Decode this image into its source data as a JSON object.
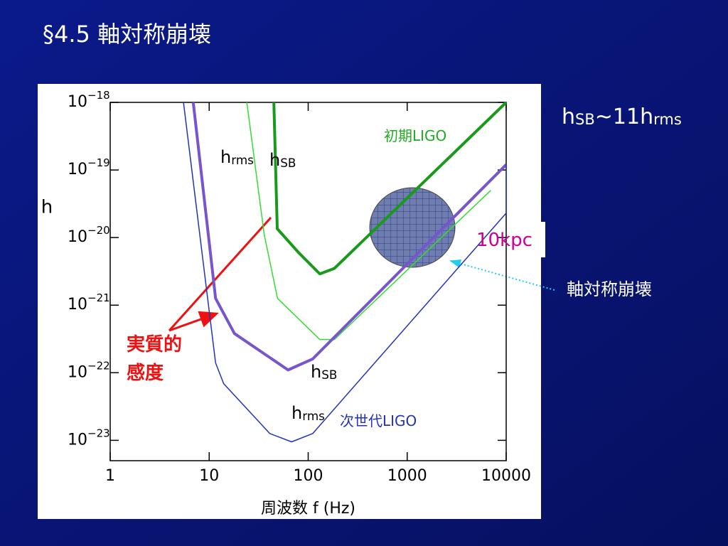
{
  "slide_title": "§4.5  軸対称崩壊",
  "chart_data": {
    "type": "line",
    "xlabel": "周波数 f (Hz)",
    "ylabel": "h",
    "xscale": "log",
    "yscale": "log",
    "xlim": [
      1,
      10000
    ],
    "ylim": [
      5e-24,
      1e-18
    ],
    "xticks": [
      1,
      10,
      100,
      1000,
      10000
    ],
    "yticks": [
      {
        "value": 1e-18,
        "label": "10",
        "exponent": "−18"
      },
      {
        "value": 1e-19,
        "label": "10",
        "exponent": "−19"
      },
      {
        "value": 1e-20,
        "label": "10",
        "exponent": "−20"
      },
      {
        "value": 1e-21,
        "label": "10",
        "exponent": "−21"
      },
      {
        "value": 1e-22,
        "label": "10",
        "exponent": "−22"
      },
      {
        "value": 1e-23,
        "label": "10",
        "exponent": "−23"
      }
    ],
    "grid": false,
    "series": [
      {
        "color": "#1a9a1a",
        "width": 4,
        "x": [
          45,
          48.7,
          80,
          131,
          184,
          10000
        ],
        "values": [
          1e-18,
          1.35e-20,
          6e-21,
          2.9e-21,
          3.5e-21,
          1e-18
        ]
      },
      {
        "color": "#33dd33",
        "width": 1.5,
        "x": [
          24,
          36,
          49,
          131,
          184,
          7000
        ],
        "values": [
          1e-18,
          1.1e-20,
          1.26e-21,
          3.1e-22,
          3.1e-22,
          5e-20
        ]
      },
      {
        "color": "#7755cc",
        "width": 4,
        "x": [
          6.9,
          11.6,
          18,
          62.6,
          111,
          10000
        ],
        "values": [
          1e-18,
          1.26e-21,
          3.8e-22,
          1.1e-22,
          1.6e-22,
          1.2e-19
        ]
      },
      {
        "color": "#2233bb",
        "width": 1.5,
        "x": [
          5.5,
          11.6,
          14,
          41,
          68,
          111,
          10000,
          10000
        ],
        "values": [
          1e-18,
          1.4e-22,
          6.9e-23,
          1.26e-23,
          9.5e-24,
          1.26e-23,
          2.3e-20,
          1.2e-19
        ]
      }
    ],
    "annotations": [
      {
        "parts": [
          "h",
          "rms"
        ]
      },
      {
        "parts": [
          "h",
          "SB"
        ]
      },
      {
        "parts": [
          "初期LIGO"
        ]
      },
      {
        "parts": [
          "h",
          "SB"
        ]
      },
      {
        "parts": [
          "h",
          "rms"
        ]
      },
      {
        "parts": [
          "次世代LIGO"
        ]
      },
      {
        "parts": [
          "実質的"
        ]
      },
      {
        "parts": [
          "感度"
        ]
      },
      {
        "parts": [
          "10kpc"
        ]
      },
      {
        "parts": [
          "軸対称崩壊"
        ]
      },
      {
        "parts": [
          "h",
          "SB",
          "~11h",
          "rms"
        ]
      }
    ]
  }
}
